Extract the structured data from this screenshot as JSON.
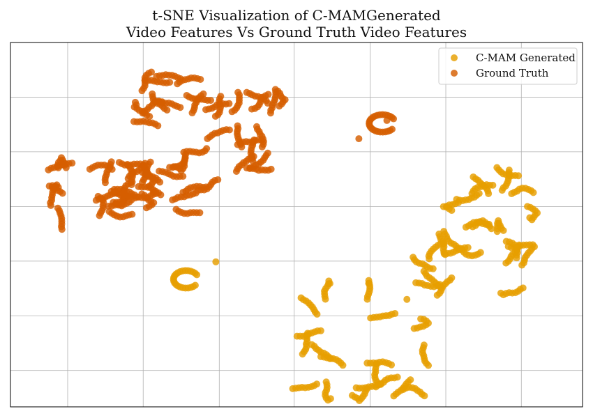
{
  "chart_data": {
    "type": "scatter",
    "title_lines": [
      "t-SNE Visualization of C-MAMGenerated",
      "Video Features Vs Ground Truth Video Features"
    ],
    "xlabel": "",
    "ylabel": "",
    "xlim": [
      0,
      100
    ],
    "ylim": [
      0,
      100
    ],
    "x_tick_values": [
      10,
      23.2,
      36.5,
      49.6,
      62.9,
      76.1,
      89.3
    ],
    "y_tick_values": [
      10,
      25,
      40,
      55,
      70,
      85
    ],
    "tick_labels_shown": false,
    "grid": true,
    "legend": {
      "position": "top-right",
      "entries": [
        "C-MAM Generated",
        "Ground Truth"
      ]
    },
    "series": [
      {
        "name": "C-MAM Generated",
        "color": "#E69F00",
        "clusters": [
          {
            "cx": 30.7,
            "cy": 35.0,
            "rx": 2.2,
            "ry": 2.4,
            "n": 24,
            "shape": "ring"
          },
          {
            "cx": 60,
            "cy": 18,
            "rx": 13,
            "ry": 16,
            "n": 170,
            "shape": "strands"
          },
          {
            "cx": 80,
            "cy": 41,
            "rx": 12,
            "ry": 10,
            "n": 150,
            "shape": "strands"
          },
          {
            "cx": 84,
            "cy": 59,
            "rx": 8,
            "ry": 7,
            "n": 70,
            "shape": "strands"
          }
        ],
        "singles": [
          {
            "x": 35.9,
            "y": 39.8
          },
          {
            "x": 69.3,
            "y": 29.5
          }
        ]
      },
      {
        "name": "Ground Truth",
        "color": "#D55E00",
        "clusters": [
          {
            "cx": 65.0,
            "cy": 77.8,
            "rx": 2.3,
            "ry": 2.4,
            "n": 26,
            "shape": "ring"
          },
          {
            "cx": 35,
            "cy": 79,
            "rx": 13,
            "ry": 14,
            "n": 260,
            "shape": "strands"
          },
          {
            "cx": 16,
            "cy": 58,
            "rx": 9,
            "ry": 10,
            "n": 150,
            "shape": "strands"
          },
          {
            "cx": 27,
            "cy": 62,
            "rx": 9,
            "ry": 9,
            "n": 110,
            "shape": "strands"
          }
        ],
        "singles": [
          {
            "x": 60.9,
            "y": 73.6
          },
          {
            "x": 65.8,
            "y": 78.6
          }
        ]
      }
    ]
  }
}
